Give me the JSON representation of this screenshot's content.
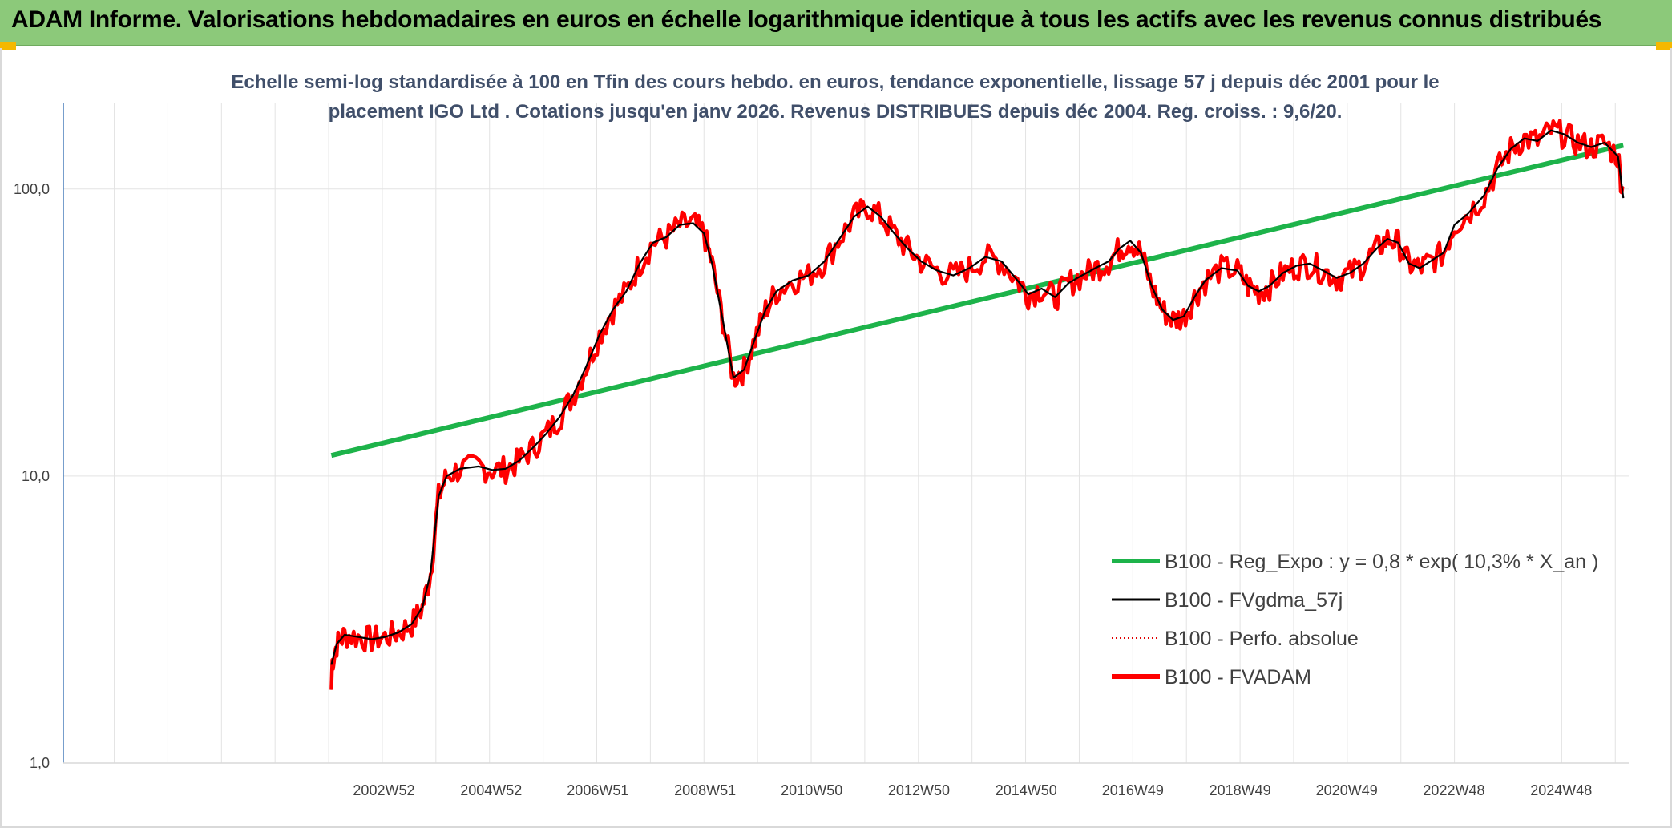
{
  "header": {
    "title": "ADAM Informe. Valorisations hebdomadaires en euros en échelle logarithmique identique à tous les actifs avec les revenus connus distribués"
  },
  "colors": {
    "header_bg": "#8cc97a",
    "trend": "#1db34a",
    "smooth": "#000000",
    "perfo": "#e00000",
    "fvadam": "#ff0000"
  },
  "chart_data": {
    "type": "line",
    "title_lines": [
      "Echelle semi-log standardisée à 100 en Tfin des cours hebdo. en euros, tendance exponentielle, lissage 57 j depuis déc 2001 pour le",
      "placement IGO Ltd . Cotations jusqu'en janv 2026. Revenus DISTRIBUES depuis déc 2004. Reg. croiss. : 9,6/20."
    ],
    "y_scale": "log",
    "ylim": [
      1,
      200
    ],
    "y_ticks": [
      {
        "value": 1,
        "label": "1,0"
      },
      {
        "value": 10,
        "label": "10,0"
      },
      {
        "value": 100,
        "label": "100,0"
      }
    ],
    "xlim": [
      1997.0,
      2026.2
    ],
    "x_ticks": [
      {
        "year": 2002.98,
        "label": "2002W52"
      },
      {
        "year": 2004.98,
        "label": "2004W52"
      },
      {
        "year": 2006.97,
        "label": "2006W51"
      },
      {
        "year": 2008.97,
        "label": "2008W51"
      },
      {
        "year": 2010.96,
        "label": "2010W50"
      },
      {
        "year": 2012.96,
        "label": "2012W50"
      },
      {
        "year": 2014.96,
        "label": "2014W50"
      },
      {
        "year": 2016.95,
        "label": "2016W49"
      },
      {
        "year": 2018.95,
        "label": "2018W49"
      },
      {
        "year": 2020.94,
        "label": "2020W49"
      },
      {
        "year": 2022.94,
        "label": "2022W48"
      },
      {
        "year": 2024.94,
        "label": "2024W48"
      }
    ],
    "grid": {
      "vertical": true,
      "horizontal": true
    },
    "legend_position": "bottom-right",
    "series": [
      {
        "name": "B100 - Reg_Expo : y = 0,8 * exp( 10,3% *  X_an )",
        "key": "trend",
        "style": "thick-line",
        "points": [
          [
            2002.0,
            11.8
          ],
          [
            2026.1,
            142
          ]
        ]
      },
      {
        "name": "B100 - FVgdma_57j",
        "key": "smooth",
        "style": "thin-line",
        "points": [
          [
            2002.0,
            2.2
          ],
          [
            2002.1,
            2.6
          ],
          [
            2002.25,
            2.8
          ],
          [
            2002.5,
            2.75
          ],
          [
            2002.75,
            2.7
          ],
          [
            2003.0,
            2.75
          ],
          [
            2003.25,
            2.85
          ],
          [
            2003.5,
            3.05
          ],
          [
            2003.7,
            3.5
          ],
          [
            2003.85,
            4.6
          ],
          [
            2004.0,
            8.5
          ],
          [
            2004.15,
            10.0
          ],
          [
            2004.4,
            10.6
          ],
          [
            2004.75,
            10.8
          ],
          [
            2005.0,
            10.5
          ],
          [
            2005.25,
            10.6
          ],
          [
            2005.5,
            11.3
          ],
          [
            2005.75,
            12.5
          ],
          [
            2006.0,
            14.0
          ],
          [
            2006.25,
            16.0
          ],
          [
            2006.5,
            19.0
          ],
          [
            2006.75,
            24.0
          ],
          [
            2007.0,
            31.0
          ],
          [
            2007.25,
            38.0
          ],
          [
            2007.5,
            44.0
          ],
          [
            2007.75,
            55.0
          ],
          [
            2008.0,
            65.0
          ],
          [
            2008.25,
            68.0
          ],
          [
            2008.5,
            75.0
          ],
          [
            2008.75,
            76.0
          ],
          [
            2008.95,
            70.0
          ],
          [
            2009.1,
            55.0
          ],
          [
            2009.3,
            35.0
          ],
          [
            2009.5,
            22.0
          ],
          [
            2009.7,
            23.5
          ],
          [
            2009.9,
            30.0
          ],
          [
            2010.1,
            38.0
          ],
          [
            2010.3,
            44.0
          ],
          [
            2010.6,
            48.0
          ],
          [
            2010.9,
            50.0
          ],
          [
            2011.2,
            56.0
          ],
          [
            2011.5,
            68.0
          ],
          [
            2011.75,
            80.0
          ],
          [
            2012.0,
            87.0
          ],
          [
            2012.25,
            80.0
          ],
          [
            2012.5,
            70.0
          ],
          [
            2012.75,
            62.0
          ],
          [
            2013.0,
            56.0
          ],
          [
            2013.3,
            52.0
          ],
          [
            2013.6,
            50.0
          ],
          [
            2013.9,
            53.0
          ],
          [
            2014.2,
            58.0
          ],
          [
            2014.5,
            56.0
          ],
          [
            2014.8,
            48.0
          ],
          [
            2015.0,
            43.0
          ],
          [
            2015.25,
            45.0
          ],
          [
            2015.5,
            42.0
          ],
          [
            2015.75,
            47.0
          ],
          [
            2016.0,
            50.0
          ],
          [
            2016.25,
            53.0
          ],
          [
            2016.5,
            56.0
          ],
          [
            2016.7,
            62.0
          ],
          [
            2016.9,
            66.0
          ],
          [
            2017.1,
            60.0
          ],
          [
            2017.3,
            46.0
          ],
          [
            2017.5,
            38.0
          ],
          [
            2017.7,
            35.0
          ],
          [
            2017.9,
            36.0
          ],
          [
            2018.1,
            42.0
          ],
          [
            2018.3,
            48.0
          ],
          [
            2018.6,
            53.0
          ],
          [
            2018.9,
            52.0
          ],
          [
            2019.1,
            46.0
          ],
          [
            2019.3,
            44.0
          ],
          [
            2019.5,
            46.0
          ],
          [
            2019.75,
            51.0
          ],
          [
            2020.0,
            54.0
          ],
          [
            2020.25,
            55.0
          ],
          [
            2020.5,
            52.0
          ],
          [
            2020.75,
            49.0
          ],
          [
            2021.0,
            51.0
          ],
          [
            2021.25,
            55.0
          ],
          [
            2021.5,
            62.0
          ],
          [
            2021.7,
            67.0
          ],
          [
            2021.9,
            65.0
          ],
          [
            2022.1,
            55.0
          ],
          [
            2022.3,
            53.0
          ],
          [
            2022.5,
            56.0
          ],
          [
            2022.75,
            60.0
          ],
          [
            2022.95,
            75.0
          ],
          [
            2023.2,
            82.0
          ],
          [
            2023.5,
            95.0
          ],
          [
            2023.75,
            118.0
          ],
          [
            2024.0,
            138.0
          ],
          [
            2024.25,
            150.0
          ],
          [
            2024.5,
            147.0
          ],
          [
            2024.75,
            160.0
          ],
          [
            2025.0,
            155.0
          ],
          [
            2025.25,
            145.0
          ],
          [
            2025.5,
            140.0
          ],
          [
            2025.75,
            145.0
          ],
          [
            2026.0,
            130.0
          ],
          [
            2026.1,
            93.0
          ]
        ]
      },
      {
        "name": "B100 - Perfo. absolue",
        "key": "perfo",
        "style": "dotted-line",
        "points": []
      },
      {
        "name": "B100 - FVADAM",
        "key": "fvadam",
        "style": "thick-line",
        "points": []
      }
    ]
  }
}
